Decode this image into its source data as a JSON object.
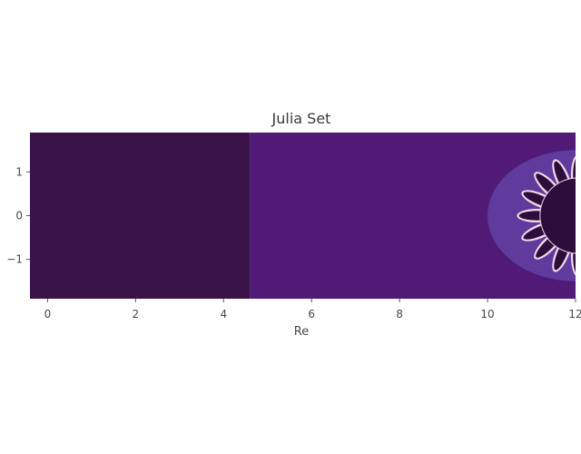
{
  "chart_data": {
    "type": "heatmap",
    "title": "Julia Set",
    "xlabel": "Re",
    "ylabel": "",
    "xlim": [
      -0.4,
      12
    ],
    "ylim": [
      -1.9,
      1.9
    ],
    "x_ticks": [
      0,
      2,
      4,
      6,
      8,
      10,
      12
    ],
    "y_ticks": [
      1,
      0,
      -1
    ],
    "x_tick_labels": [
      "0",
      "2",
      "4",
      "6",
      "8",
      "10",
      "12"
    ],
    "y_tick_labels": [
      "1",
      "0",
      "−1"
    ],
    "colormap": "inferno-like",
    "grid": false,
    "legend": "none",
    "colors": {
      "outer_region": "#3a1349",
      "middle_region": "#501a76",
      "inner_halo": "#5e3b9c",
      "set_interior": "#2e0d3c",
      "boundary_highlight": "#f4d8e6"
    },
    "regions": [
      {
        "name": "outer",
        "x_start": -0.4,
        "x_end": 4.6,
        "escape_level": 1
      },
      {
        "name": "middle",
        "x_start": 4.6,
        "x_end": 12,
        "escape_level": 2
      },
      {
        "name": "halo",
        "center": [
          12,
          0
        ],
        "radii": [
          2,
          1.5
        ],
        "escape_level": 3
      },
      {
        "name": "fractal_set",
        "center": [
          12.05,
          0
        ],
        "radius": 1.2,
        "petals": 16,
        "escape_level": 0
      }
    ]
  }
}
